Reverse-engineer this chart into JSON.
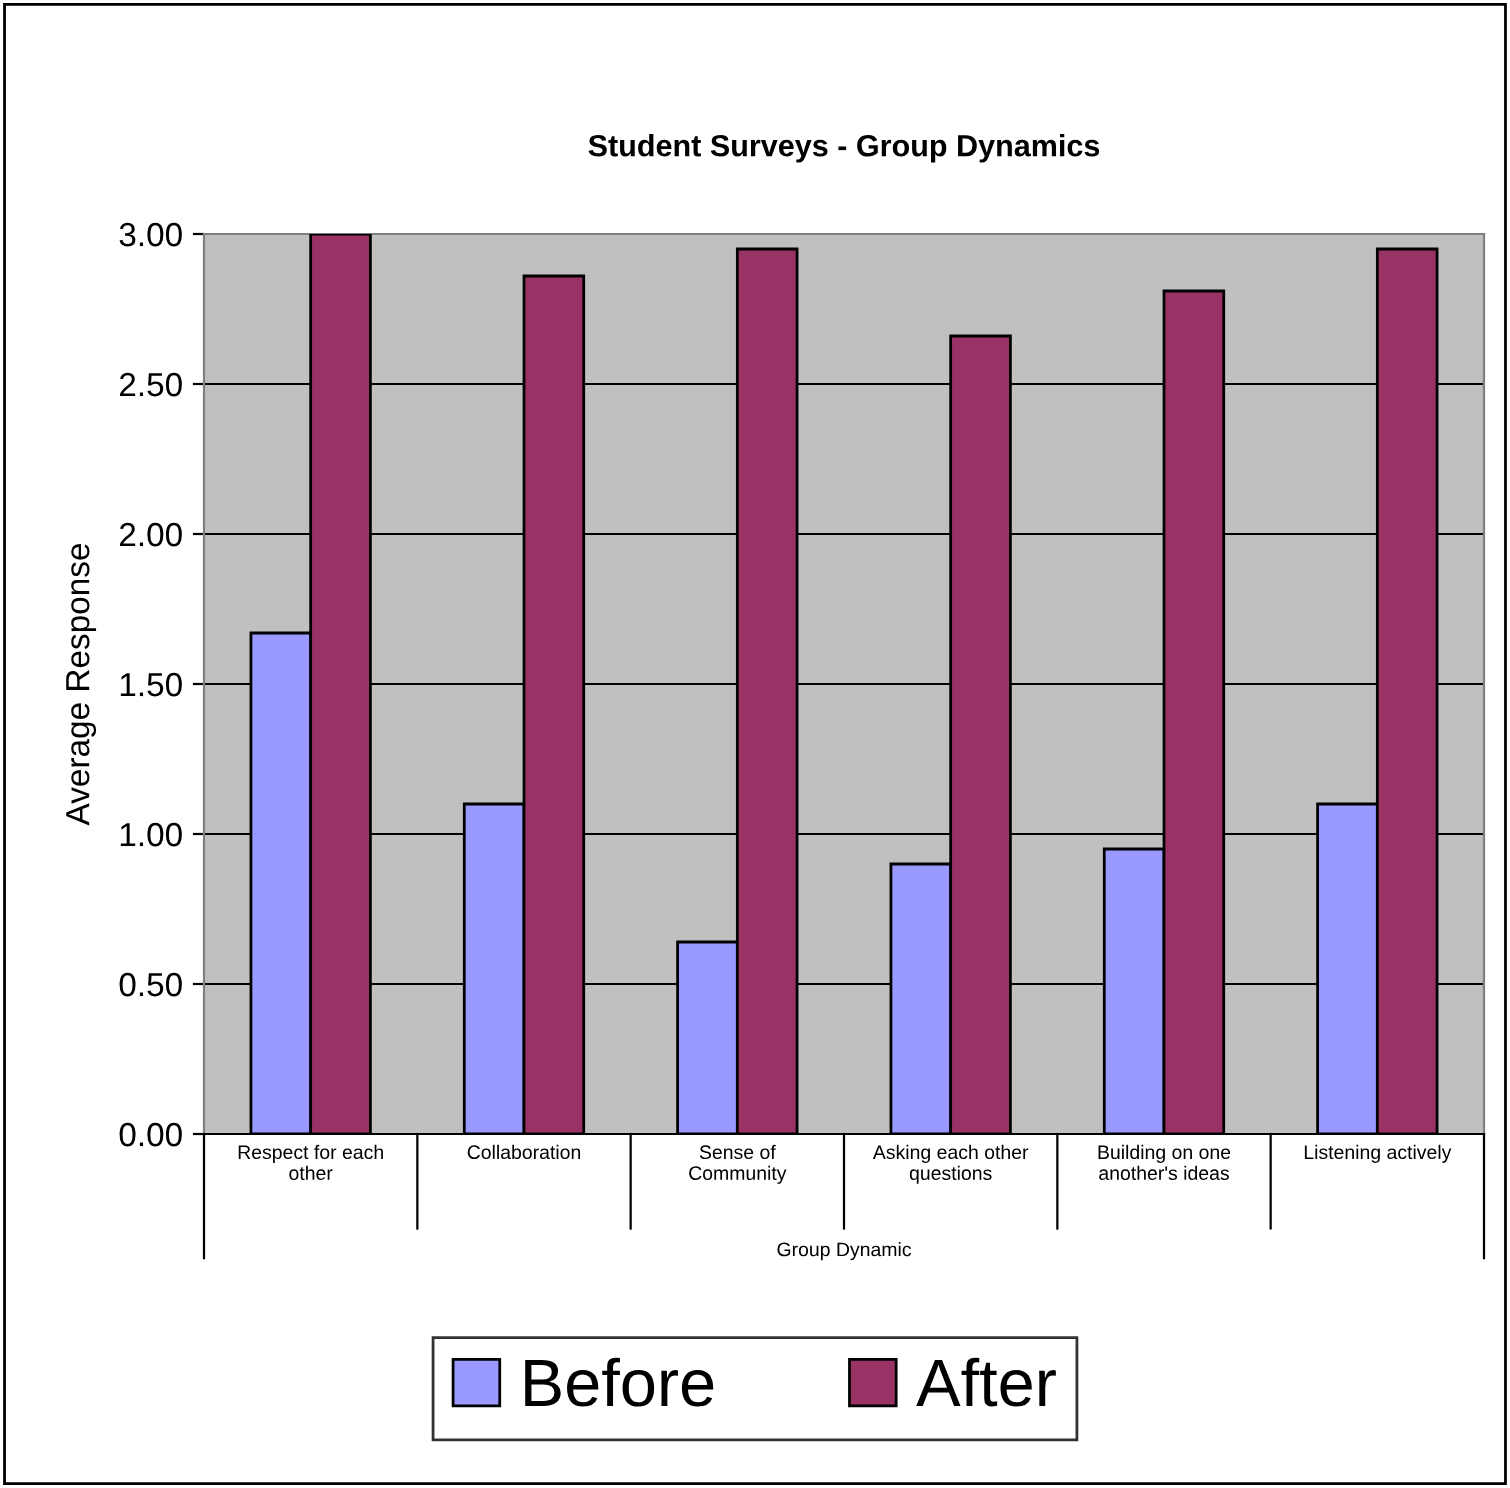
{
  "chart_data": {
    "type": "bar",
    "title": "Student Surveys - Group Dynamics",
    "xlabel": "Group Dynamic",
    "ylabel": "Average Response",
    "categories": [
      "Respect for each\nother",
      "Collaboration",
      "Sense of\nCommunity",
      "Asking each other\nquestions",
      "Building on one\nanother's ideas",
      "Listening actively"
    ],
    "series": [
      {
        "name": "Before",
        "color": "#9999ff",
        "values": [
          1.67,
          1.1,
          0.64,
          0.9,
          0.95,
          1.1
        ]
      },
      {
        "name": "After",
        "color": "#993366",
        "values": [
          3.0,
          2.86,
          2.95,
          2.66,
          2.81,
          2.95
        ]
      }
    ],
    "ylim": [
      0,
      3
    ],
    "yticks": [
      {
        "value": 0,
        "label": "0.00"
      },
      {
        "value": 0.5,
        "label": "0.50"
      },
      {
        "value": 1,
        "label": "1.00"
      },
      {
        "value": 1.5,
        "label": "1.50"
      },
      {
        "value": 2,
        "label": "2.00"
      },
      {
        "value": 2.5,
        "label": "2.50"
      },
      {
        "value": 3,
        "label": "3.00"
      }
    ],
    "grid": "y",
    "legend": "bottom"
  }
}
